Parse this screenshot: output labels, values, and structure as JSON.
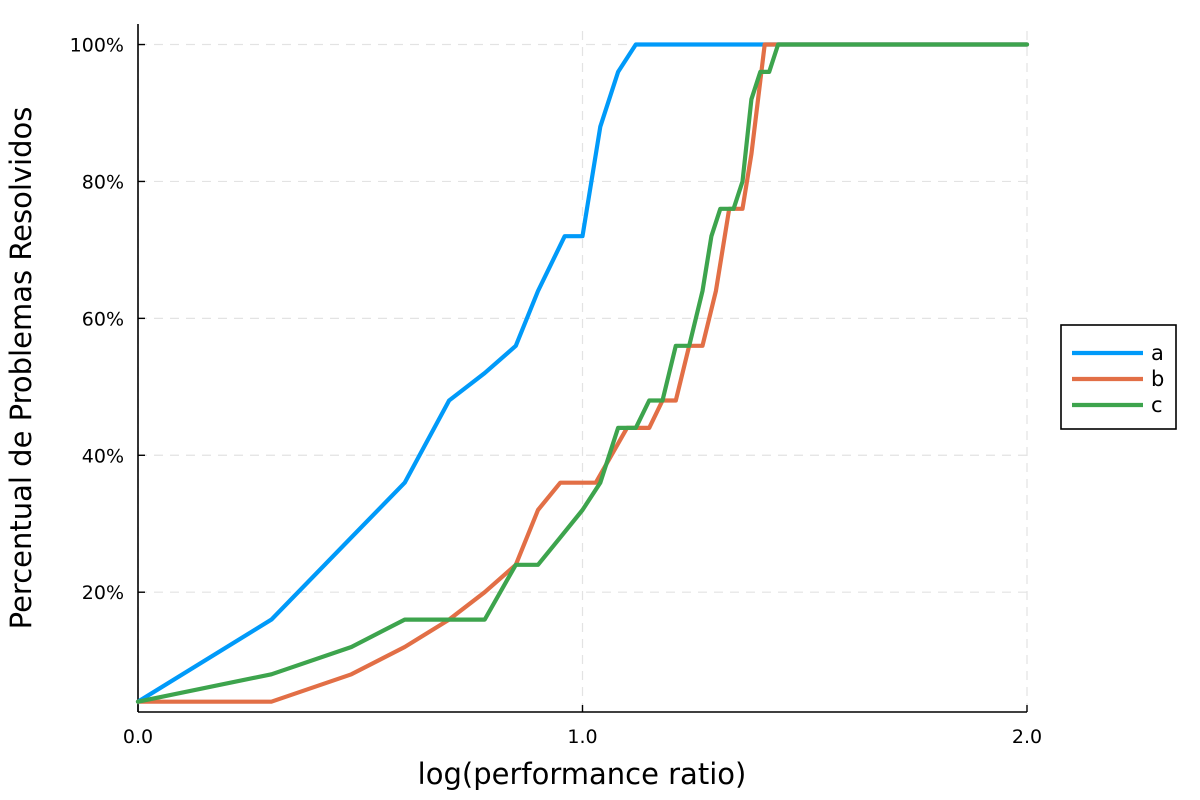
{
  "chart_data": {
    "type": "line",
    "xlabel": "log(performance ratio)",
    "ylabel": "Percentual de Problemas Resolvidos",
    "xlim": [
      0,
      2
    ],
    "ylim": [
      2.5,
      103
    ],
    "x_ticks": [
      {
        "value": 0,
        "label": "0.0"
      },
      {
        "value": 1,
        "label": "1.0"
      },
      {
        "value": 2,
        "label": "2.0"
      }
    ],
    "y_ticks": [
      {
        "value": 20,
        "label": "20%"
      },
      {
        "value": 40,
        "label": "40%"
      },
      {
        "value": 60,
        "label": "60%"
      },
      {
        "value": 80,
        "label": "80%"
      },
      {
        "value": 100,
        "label": "100%"
      }
    ],
    "grid": true,
    "legend_position": "right",
    "series": [
      {
        "name": "a",
        "color": "#009af9",
        "points": [
          [
            0,
            4
          ],
          [
            0.3,
            16
          ],
          [
            0.48,
            28
          ],
          [
            0.6,
            36
          ],
          [
            0.7,
            48
          ],
          [
            0.78,
            52
          ],
          [
            0.85,
            56
          ],
          [
            0.9,
            64
          ],
          [
            0.96,
            72
          ],
          [
            1.0,
            72
          ],
          [
            1.04,
            88
          ],
          [
            1.08,
            96
          ],
          [
            1.12,
            100
          ],
          [
            2.0,
            100
          ]
        ]
      },
      {
        "name": "b",
        "color": "#e26f46",
        "points": [
          [
            0,
            4
          ],
          [
            0.3,
            4
          ],
          [
            0.48,
            8
          ],
          [
            0.6,
            12
          ],
          [
            0.7,
            16
          ],
          [
            0.78,
            20
          ],
          [
            0.85,
            24
          ],
          [
            0.9,
            32
          ],
          [
            0.95,
            36
          ],
          [
            1.03,
            36
          ],
          [
            1.1,
            44
          ],
          [
            1.15,
            44
          ],
          [
            1.18,
            48
          ],
          [
            1.21,
            48
          ],
          [
            1.24,
            56
          ],
          [
            1.27,
            56
          ],
          [
            1.3,
            64
          ],
          [
            1.33,
            76
          ],
          [
            1.36,
            76
          ],
          [
            1.38,
            84
          ],
          [
            1.41,
            100
          ],
          [
            2.0,
            100
          ]
        ]
      },
      {
        "name": "c",
        "color": "#3da44d",
        "points": [
          [
            0,
            4
          ],
          [
            0.3,
            8
          ],
          [
            0.48,
            12
          ],
          [
            0.6,
            16
          ],
          [
            0.78,
            16
          ],
          [
            0.85,
            24
          ],
          [
            0.9,
            24
          ],
          [
            0.95,
            28
          ],
          [
            1.0,
            32
          ],
          [
            1.04,
            36
          ],
          [
            1.08,
            44
          ],
          [
            1.12,
            44
          ],
          [
            1.15,
            48
          ],
          [
            1.18,
            48
          ],
          [
            1.21,
            56
          ],
          [
            1.24,
            56
          ],
          [
            1.27,
            64
          ],
          [
            1.29,
            72
          ],
          [
            1.31,
            76
          ],
          [
            1.34,
            76
          ],
          [
            1.36,
            80
          ],
          [
            1.38,
            92
          ],
          [
            1.4,
            96
          ],
          [
            1.42,
            96
          ],
          [
            1.44,
            100
          ],
          [
            2.0,
            100
          ]
        ]
      }
    ]
  }
}
